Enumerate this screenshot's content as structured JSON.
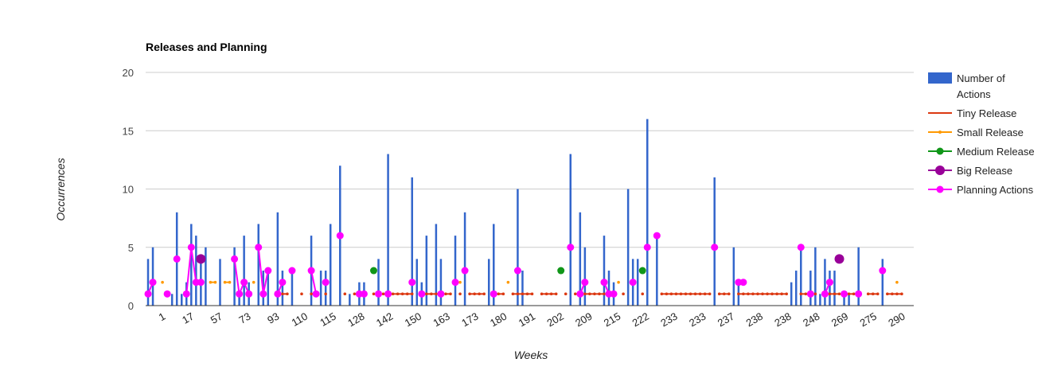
{
  "chart_data": {
    "type": "combo",
    "title": "Releases and Planning",
    "xlabel": "Weeks",
    "ylabel": "Occurrences",
    "ylim": [
      0,
      20
    ],
    "yticks": [
      "0",
      "5",
      "10",
      "15",
      "20"
    ],
    "grid": true,
    "legend_position": "right",
    "x_tick_labels": [
      "1",
      "17",
      "57",
      "73",
      "93",
      "110",
      "115",
      "128",
      "142",
      "150",
      "163",
      "173",
      "180",
      "191",
      "202",
      "209",
      "215",
      "222",
      "233",
      "233",
      "237",
      "238",
      "238",
      "248",
      "269",
      "275",
      "290"
    ],
    "x_points": 160,
    "colors": {
      "actions": "#3366cc",
      "tiny": "#dc3912",
      "small": "#ff9900",
      "medium": "#109618",
      "big": "#990099",
      "planning": "#ff00ff",
      "grid": "#cccccc",
      "axis": "#333333"
    },
    "legend": [
      {
        "key": "actions",
        "label": [
          "Number of",
          "Actions"
        ],
        "marker": "bar"
      },
      {
        "key": "tiny",
        "label": [
          "Tiny Release"
        ],
        "marker": "line"
      },
      {
        "key": "small",
        "label": [
          "Small Release"
        ],
        "marker": "smallline"
      },
      {
        "key": "medium",
        "label": [
          "Medium Release"
        ],
        "marker": "linepoint"
      },
      {
        "key": "big",
        "label": [
          "Big Release"
        ],
        "marker": "bigpoint"
      },
      {
        "key": "planning",
        "label": [
          "Planning Actions"
        ],
        "marker": "linepoint"
      }
    ],
    "series": [
      {
        "name": "Number of Actions",
        "type": "bar",
        "points": [
          [
            1,
            4
          ],
          [
            2,
            5
          ],
          [
            6,
            1
          ],
          [
            7,
            8
          ],
          [
            8,
            1
          ],
          [
            9,
            2
          ],
          [
            10,
            7
          ],
          [
            11,
            6
          ],
          [
            12,
            4
          ],
          [
            13,
            5
          ],
          [
            16,
            4
          ],
          [
            19,
            5
          ],
          [
            20,
            1
          ],
          [
            21,
            6
          ],
          [
            22,
            2
          ],
          [
            24,
            7
          ],
          [
            25,
            3
          ],
          [
            26,
            3
          ],
          [
            28,
            8
          ],
          [
            29,
            3
          ],
          [
            31,
            3
          ],
          [
            35,
            6
          ],
          [
            37,
            3
          ],
          [
            38,
            3
          ],
          [
            39,
            7
          ],
          [
            41,
            12
          ],
          [
            43,
            1
          ],
          [
            45,
            2
          ],
          [
            46,
            2
          ],
          [
            49,
            4
          ],
          [
            51,
            13
          ],
          [
            56,
            11
          ],
          [
            57,
            4
          ],
          [
            58,
            2
          ],
          [
            59,
            6
          ],
          [
            61,
            7
          ],
          [
            62,
            4
          ],
          [
            65,
            6
          ],
          [
            67,
            8
          ],
          [
            72,
            4
          ],
          [
            73,
            7
          ],
          [
            78,
            10
          ],
          [
            79,
            3
          ],
          [
            89,
            13
          ],
          [
            91,
            8
          ],
          [
            92,
            5
          ],
          [
            96,
            6
          ],
          [
            97,
            3
          ],
          [
            98,
            2
          ],
          [
            101,
            10
          ],
          [
            102,
            4
          ],
          [
            103,
            4
          ],
          [
            105,
            16
          ],
          [
            107,
            6
          ],
          [
            119,
            11
          ],
          [
            123,
            5
          ],
          [
            124,
            2
          ],
          [
            135,
            2
          ],
          [
            136,
            3
          ],
          [
            137,
            5
          ],
          [
            139,
            3
          ],
          [
            140,
            5
          ],
          [
            141,
            1
          ],
          [
            142,
            4
          ],
          [
            143,
            3
          ],
          [
            144,
            3
          ],
          [
            146,
            1
          ],
          [
            147,
            1
          ],
          [
            149,
            5
          ],
          [
            154,
            4
          ]
        ]
      },
      {
        "name": "Tiny Release",
        "type": "line",
        "points": [
          [
            29,
            1
          ],
          [
            30,
            1
          ],
          [
            33,
            1
          ],
          [
            35,
            1
          ],
          [
            36,
            1
          ],
          [
            38,
            1
          ],
          [
            42,
            1
          ],
          [
            44,
            1
          ],
          [
            48,
            1
          ],
          [
            50,
            1
          ],
          [
            51,
            1
          ],
          [
            52,
            1
          ],
          [
            53,
            1
          ],
          [
            54,
            1
          ],
          [
            55,
            1
          ],
          [
            56,
            1
          ],
          [
            58,
            1
          ],
          [
            59,
            1
          ],
          [
            60,
            1
          ],
          [
            61,
            1
          ],
          [
            63,
            1
          ],
          [
            64,
            1
          ],
          [
            66,
            1
          ],
          [
            68,
            1
          ],
          [
            69,
            1
          ],
          [
            70,
            1
          ],
          [
            71,
            1
          ],
          [
            73,
            1
          ],
          [
            74,
            1
          ],
          [
            75,
            1
          ],
          [
            77,
            1
          ],
          [
            78,
            1
          ],
          [
            79,
            1
          ],
          [
            80,
            1
          ],
          [
            81,
            1
          ],
          [
            83,
            1
          ],
          [
            84,
            1
          ],
          [
            85,
            1
          ],
          [
            86,
            1
          ],
          [
            88,
            1
          ],
          [
            90,
            1
          ],
          [
            92,
            1
          ],
          [
            93,
            1
          ],
          [
            94,
            1
          ],
          [
            95,
            1
          ],
          [
            96,
            1
          ],
          [
            100,
            1
          ],
          [
            104,
            1
          ],
          [
            108,
            1
          ],
          [
            109,
            1
          ],
          [
            110,
            1
          ],
          [
            111,
            1
          ],
          [
            112,
            1
          ],
          [
            113,
            1
          ],
          [
            114,
            1
          ],
          [
            115,
            1
          ],
          [
            116,
            1
          ],
          [
            117,
            1
          ],
          [
            118,
            1
          ],
          [
            120,
            1
          ],
          [
            121,
            1
          ],
          [
            122,
            1
          ],
          [
            124,
            1
          ],
          [
            125,
            1
          ],
          [
            126,
            1
          ],
          [
            127,
            1
          ],
          [
            128,
            1
          ],
          [
            129,
            1
          ],
          [
            130,
            1
          ],
          [
            131,
            1
          ],
          [
            132,
            1
          ],
          [
            133,
            1
          ],
          [
            134,
            1
          ],
          [
            137,
            1
          ],
          [
            138,
            1
          ],
          [
            139,
            1
          ],
          [
            140,
            1
          ],
          [
            142,
            1
          ],
          [
            143,
            1
          ],
          [
            144,
            1
          ],
          [
            145,
            1
          ],
          [
            147,
            1
          ],
          [
            148,
            1
          ],
          [
            149,
            1
          ],
          [
            151,
            1
          ],
          [
            152,
            1
          ],
          [
            153,
            1
          ],
          [
            155,
            1
          ],
          [
            156,
            1
          ],
          [
            157,
            1
          ],
          [
            158,
            1
          ]
        ]
      },
      {
        "name": "Small Release",
        "type": "line",
        "points": [
          [
            4,
            2
          ],
          [
            14,
            2
          ],
          [
            15,
            2
          ],
          [
            17,
            2
          ],
          [
            18,
            2
          ],
          [
            23,
            2
          ],
          [
            66,
            2
          ],
          [
            76,
            2
          ],
          [
            99,
            2
          ],
          [
            157,
            2
          ]
        ]
      },
      {
        "name": "Medium Release",
        "type": "point",
        "points": [
          [
            48,
            3
          ],
          [
            87,
            3
          ],
          [
            104,
            3
          ]
        ]
      },
      {
        "name": "Big Release",
        "type": "point",
        "points": [
          [
            12,
            4
          ],
          [
            145,
            4
          ]
        ]
      },
      {
        "name": "Planning Actions",
        "type": "line",
        "points": [
          [
            1,
            1
          ],
          [
            2,
            2
          ],
          [
            5,
            1
          ],
          [
            7,
            4
          ],
          [
            9,
            1
          ],
          [
            10,
            5
          ],
          [
            11,
            2
          ],
          [
            12,
            2
          ],
          [
            19,
            4
          ],
          [
            20,
            1
          ],
          [
            21,
            2
          ],
          [
            22,
            1
          ],
          [
            24,
            5
          ],
          [
            25,
            1
          ],
          [
            26,
            3
          ],
          [
            28,
            1
          ],
          [
            29,
            2
          ],
          [
            31,
            3
          ],
          [
            35,
            3
          ],
          [
            36,
            1
          ],
          [
            38,
            2
          ],
          [
            41,
            6
          ],
          [
            45,
            1
          ],
          [
            46,
            1
          ],
          [
            49,
            1
          ],
          [
            51,
            1
          ],
          [
            56,
            2
          ],
          [
            58,
            1
          ],
          [
            62,
            1
          ],
          [
            65,
            2
          ],
          [
            67,
            3
          ],
          [
            73,
            1
          ],
          [
            78,
            3
          ],
          [
            89,
            5
          ],
          [
            91,
            1
          ],
          [
            92,
            2
          ],
          [
            96,
            2
          ],
          [
            97,
            1
          ],
          [
            98,
            1
          ],
          [
            102,
            2
          ],
          [
            105,
            5
          ],
          [
            107,
            6
          ],
          [
            119,
            5
          ],
          [
            124,
            2
          ],
          [
            125,
            2
          ],
          [
            137,
            5
          ],
          [
            139,
            1
          ],
          [
            142,
            1
          ],
          [
            143,
            2
          ],
          [
            146,
            1
          ],
          [
            149,
            1
          ],
          [
            154,
            3
          ]
        ]
      }
    ]
  }
}
